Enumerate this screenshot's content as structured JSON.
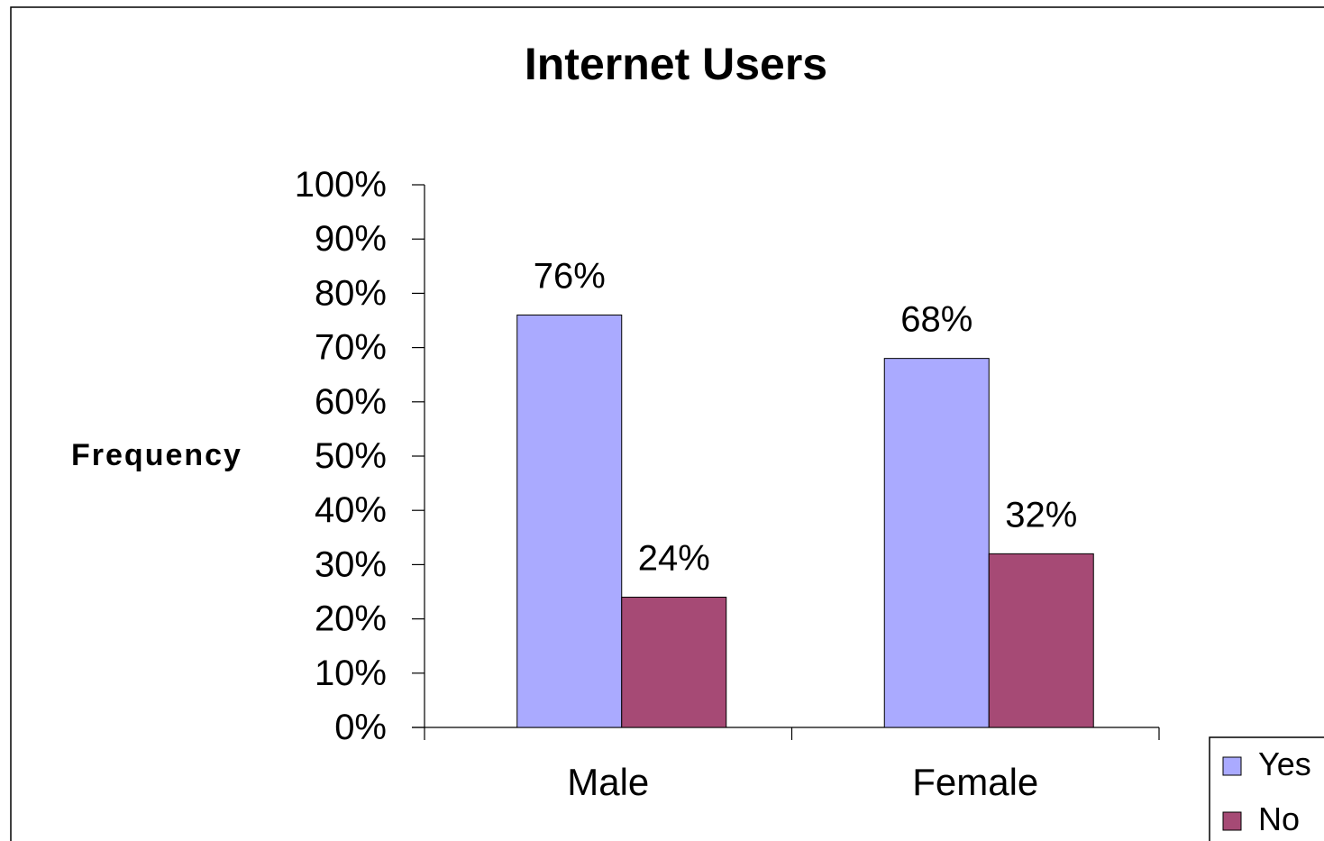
{
  "chart_data": {
    "type": "bar",
    "title": "Internet Users",
    "ylabel": "Frequency",
    "xlabel": "",
    "categories": [
      "Male",
      "Female"
    ],
    "series": [
      {
        "name": "Yes",
        "values": [
          76,
          68
        ],
        "labels": [
          "76%",
          "68%"
        ],
        "color": "#aaaaff"
      },
      {
        "name": "No",
        "values": [
          24,
          32
        ],
        "labels": [
          "24%",
          "32%"
        ],
        "color": "#a64a75"
      }
    ],
    "ylim": [
      0,
      100
    ],
    "yticks": [
      0,
      10,
      20,
      30,
      40,
      50,
      60,
      70,
      80,
      90,
      100
    ],
    "ytick_labels": [
      "0%",
      "10%",
      "20%",
      "30%",
      "40%",
      "50%",
      "60%",
      "70%",
      "80%",
      "90%",
      "100%"
    ],
    "grid": false,
    "legend_position": "bottom-right"
  }
}
